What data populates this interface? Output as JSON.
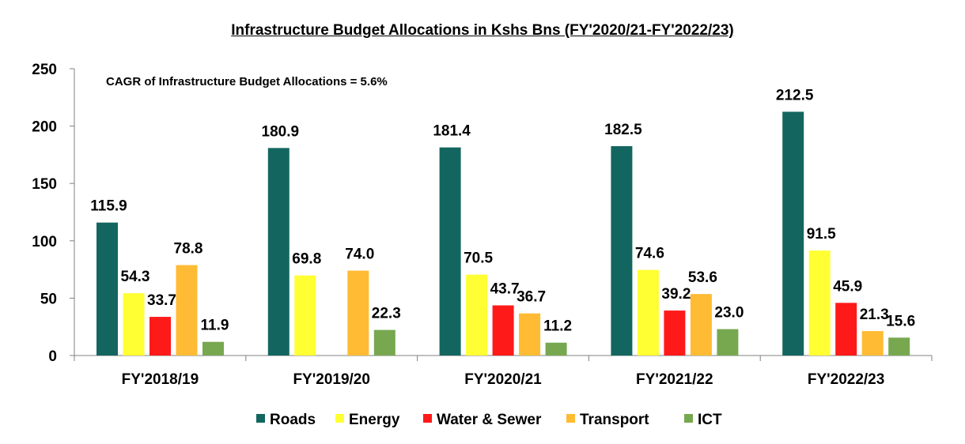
{
  "chart_data": {
    "type": "bar",
    "title": "Infrastructure Budget Allocations in Kshs Bns (FY'2020/21-FY'2022/23)",
    "annotation": "CAGR of Infrastructure Budget Allocations = 5.6%",
    "xlabel": "",
    "ylabel": "",
    "ylim": [
      0,
      250
    ],
    "yticks": [
      0,
      50,
      100,
      150,
      200,
      250
    ],
    "grid": false,
    "legend_position": "bottom",
    "categories": [
      "FY'2018/19",
      "FY'2019/20",
      "FY'2020/21",
      "FY'2021/22",
      "FY'2022/23"
    ],
    "series": [
      {
        "name": "Roads",
        "color": "#13665f",
        "values": [
          115.9,
          180.9,
          181.4,
          182.5,
          212.5
        ],
        "labels": [
          "115.9",
          "180.9",
          "181.4",
          "182.5",
          "212.5"
        ]
      },
      {
        "name": "Energy",
        "color": "#ffff33",
        "values": [
          54.3,
          69.8,
          70.5,
          74.6,
          91.5
        ],
        "labels": [
          "54.3",
          "69.8",
          "70.5",
          "74.6",
          "91.5"
        ]
      },
      {
        "name": "Water & Sewer",
        "color": "#ff1a1a",
        "values": [
          33.7,
          null,
          43.7,
          39.2,
          45.9
        ],
        "labels": [
          "33.7",
          null,
          "43.7",
          "39.2",
          "45.9"
        ]
      },
      {
        "name": "Transport",
        "color": "#ffbb33",
        "values": [
          78.8,
          74.0,
          36.7,
          53.6,
          21.3
        ],
        "labels": [
          "78.8",
          "74.0",
          "36.7",
          "53.6",
          "21.3"
        ]
      },
      {
        "name": "ICT",
        "color": "#77a850",
        "values": [
          11.9,
          22.3,
          11.2,
          23.0,
          15.6
        ],
        "labels": [
          "11.9",
          "22.3",
          "11.2",
          "23.0",
          "15.6"
        ]
      }
    ]
  }
}
